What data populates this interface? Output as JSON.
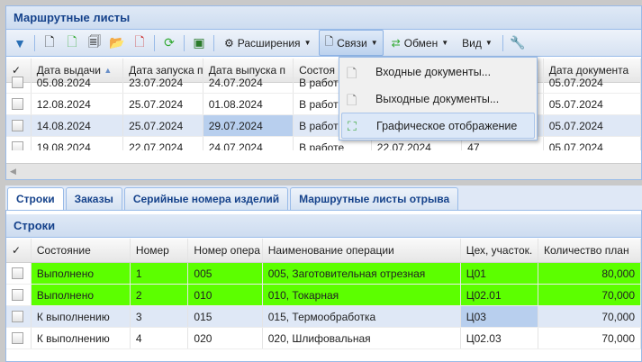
{
  "main_panel": {
    "title": "Маршрутные листы"
  },
  "toolbar": {
    "extensions": "Расширения",
    "links": "Связи",
    "exchange": "Обмен",
    "view": "Вид"
  },
  "links_menu": {
    "items": [
      "Входные документы...",
      "Выходные документы...",
      "Графическое отображение"
    ]
  },
  "top_grid": {
    "columns": [
      "Дата выдачи",
      "Дата запуска п",
      "Дата выпуска п",
      "Состоя",
      "",
      "м",
      "Дата документа"
    ],
    "rows": [
      [
        "05.08.2024",
        "23.07.2024",
        "24.07.2024",
        "В работе",
        "",
        "",
        "05.07.2024"
      ],
      [
        "12.08.2024",
        "25.07.2024",
        "01.08.2024",
        "В работе",
        "",
        "",
        "05.07.2024"
      ],
      [
        "14.08.2024",
        "25.07.2024",
        "29.07.2024",
        "В работе",
        "",
        "",
        "05.07.2024"
      ],
      [
        "19.08.2024",
        "22.07.2024",
        "24.07.2024",
        "В работе",
        "22.07.2024",
        "47",
        "05.07.2024"
      ]
    ]
  },
  "tabs": [
    "Строки",
    "Заказы",
    "Серийные номера изделий",
    "Маршрутные листы отрыва"
  ],
  "lines_panel": {
    "title": "Строки"
  },
  "lines_grid": {
    "columns": [
      "Состояние",
      "Номер",
      "Номер опера",
      "Наименование операции",
      "Цех, участок.",
      "Количество план"
    ],
    "rows": [
      [
        "Выполнено",
        "1",
        "005",
        "005, Заготовительная отрезная",
        "Ц01",
        "80,000"
      ],
      [
        "Выполнено",
        "2",
        "010",
        "010, Токарная",
        "Ц02.01",
        "70,000"
      ],
      [
        "К выполнению",
        "3",
        "015",
        "015, Термообработка",
        "Ц03",
        "70,000"
      ],
      [
        "К выполнению",
        "4",
        "020",
        "020, Шлифовальная",
        "Ц02.03",
        "70,000"
      ]
    ]
  },
  "colors": {
    "done": "#5cff00",
    "header": "#15428b",
    "selected_row": "#dfe8f6"
  }
}
